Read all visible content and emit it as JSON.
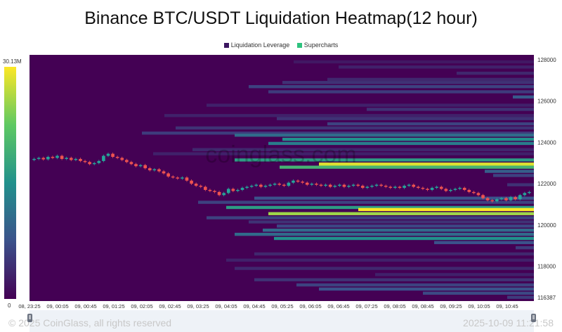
{
  "title": "Binance BTC/USDT Liquidation Heatmap(12 hour)",
  "legend": [
    {
      "label": "Liquidation Leverage",
      "color": "#3b1560"
    },
    {
      "label": "Supercharts",
      "color": "#2ec27e"
    }
  ],
  "watermark": "coinglass.com",
  "footer": {
    "copyright": "© 2025 CoinGlass, all rights reserved",
    "timestamp": "2025-10-09 11:21:58"
  },
  "chart_data": {
    "type": "heatmap",
    "colorscale": {
      "min_label": "0",
      "max_label": "30.13M",
      "max": 30130000,
      "colors": [
        "#440154",
        "#31688e",
        "#21918c",
        "#35b779",
        "#fde725"
      ]
    },
    "x_labels": [
      "08, 23:25",
      "09, 00:05",
      "09, 00:45",
      "09, 01:25",
      "09, 02:05",
      "09, 02:45",
      "09, 03:25",
      "09, 04:05",
      "09, 04:45",
      "09, 05:25",
      "09, 06:05",
      "09, 06:45",
      "09, 07:25",
      "09, 08:05",
      "09, 08:45",
      "09, 09:25",
      "09, 10:05",
      "09, 10:45"
    ],
    "y_labels": [
      "128000",
      "126000",
      "124000",
      "122000",
      "120000",
      "118000",
      "116387"
    ],
    "ylim": [
      116387,
      128200
    ],
    "bands": [
      {
        "price": 127900,
        "start": 9.4,
        "v": 0.07
      },
      {
        "price": 127650,
        "start": 11.0,
        "v": 0.1
      },
      {
        "price": 127350,
        "start": 15.2,
        "v": 0.12
      },
      {
        "price": 127050,
        "start": 10.6,
        "v": 0.12
      },
      {
        "price": 126900,
        "start": 9.0,
        "v": 0.15
      },
      {
        "price": 126700,
        "start": 7.8,
        "v": 0.2
      },
      {
        "price": 126450,
        "start": 8.5,
        "v": 0.18
      },
      {
        "price": 126200,
        "start": 17.2,
        "v": 0.28
      },
      {
        "price": 125800,
        "start": 6.3,
        "v": 0.1
      },
      {
        "price": 125600,
        "start": 12.0,
        "v": 0.15
      },
      {
        "price": 125300,
        "start": 4.8,
        "v": 0.1
      },
      {
        "price": 125150,
        "start": 8.8,
        "v": 0.15
      },
      {
        "price": 124900,
        "start": 10.6,
        "v": 0.2
      },
      {
        "price": 124700,
        "start": 5.2,
        "v": 0.15
      },
      {
        "price": 124450,
        "start": 4.0,
        "v": 0.18
      },
      {
        "price": 124350,
        "start": 7.3,
        "v": 0.35
      },
      {
        "price": 124150,
        "start": 9.0,
        "v": 0.5
      },
      {
        "price": 123950,
        "start": 8.5,
        "v": 0.42
      },
      {
        "price": 123650,
        "start": 5.8,
        "v": 0.12
      },
      {
        "price": 123450,
        "start": 4.4,
        "v": 0.1
      },
      {
        "price": 123150,
        "start": 7.3,
        "v": 0.55
      },
      {
        "price": 122950,
        "start": 10.3,
        "v": 0.95
      },
      {
        "price": 122800,
        "start": 8.9,
        "v": 0.65
      },
      {
        "price": 122600,
        "start": 16.2,
        "v": 0.3
      },
      {
        "price": 122400,
        "start": 16.5,
        "v": 0.2
      },
      {
        "price": 121950,
        "start": 17.0,
        "v": 0.15
      },
      {
        "price": 121300,
        "start": 8.0,
        "v": 0.25
      },
      {
        "price": 121100,
        "start": 6.0,
        "v": 0.2
      },
      {
        "price": 120850,
        "start": 7.0,
        "v": 0.55
      },
      {
        "price": 120750,
        "start": 11.7,
        "v": 1.0
      },
      {
        "price": 120550,
        "start": 8.5,
        "v": 0.85
      },
      {
        "price": 120350,
        "start": 6.3,
        "v": 0.2
      },
      {
        "price": 120150,
        "start": 7.8,
        "v": 0.15
      },
      {
        "price": 119950,
        "start": 8.8,
        "v": 0.22
      },
      {
        "price": 119750,
        "start": 8.3,
        "v": 0.35
      },
      {
        "price": 119550,
        "start": 7.3,
        "v": 0.35
      },
      {
        "price": 119350,
        "start": 8.7,
        "v": 0.5
      },
      {
        "price": 119150,
        "start": 14.4,
        "v": 0.25
      },
      {
        "price": 118900,
        "start": 17.3,
        "v": 0.18
      },
      {
        "price": 118600,
        "start": 8.0,
        "v": 0.12
      },
      {
        "price": 118300,
        "start": 7.0,
        "v": 0.1
      },
      {
        "price": 117900,
        "start": 7.3,
        "v": 0.12
      },
      {
        "price": 117600,
        "start": 12.3,
        "v": 0.1
      },
      {
        "price": 117350,
        "start": 8.0,
        "v": 0.15
      },
      {
        "price": 117100,
        "start": 9.5,
        "v": 0.2
      },
      {
        "price": 116900,
        "start": 10.3,
        "v": 0.25
      },
      {
        "price": 116700,
        "start": 14.0,
        "v": 0.22
      },
      {
        "price": 116500,
        "start": 17.0,
        "v": 0.18
      }
    ],
    "price_series": [
      123150,
      123200,
      123250,
      123180,
      123300,
      123250,
      123350,
      123200,
      123250,
      123150,
      123200,
      123100,
      123050,
      122950,
      123000,
      123100,
      123350,
      123450,
      123300,
      123250,
      123150,
      123050,
      122950,
      122850,
      122900,
      122750,
      122650,
      122700,
      122600,
      122500,
      122350,
      122300,
      122250,
      122300,
      122150,
      122000,
      121900,
      121850,
      121700,
      121650,
      121600,
      121450,
      121550,
      121750,
      121650,
      121700,
      121800,
      121850,
      121900,
      121950,
      121850,
      121900,
      121950,
      122000,
      121950,
      121900,
      122050,
      122150,
      122100,
      122050,
      121950,
      122000,
      121950,
      121900,
      121950,
      121850,
      121900,
      121950,
      121850,
      121900,
      121950,
      121900,
      121800,
      121850,
      121900,
      121950,
      121900,
      121850,
      121800,
      121850,
      121800,
      121900,
      121950,
      121850,
      121800,
      121750,
      121700,
      121800,
      121850,
      121750,
      121650,
      121700,
      121750,
      121800,
      121700,
      121600,
      121550,
      121450,
      121300,
      121200,
      121150,
      121250,
      121300,
      121200,
      121350,
      121250,
      121450,
      121550,
      121600
    ]
  }
}
